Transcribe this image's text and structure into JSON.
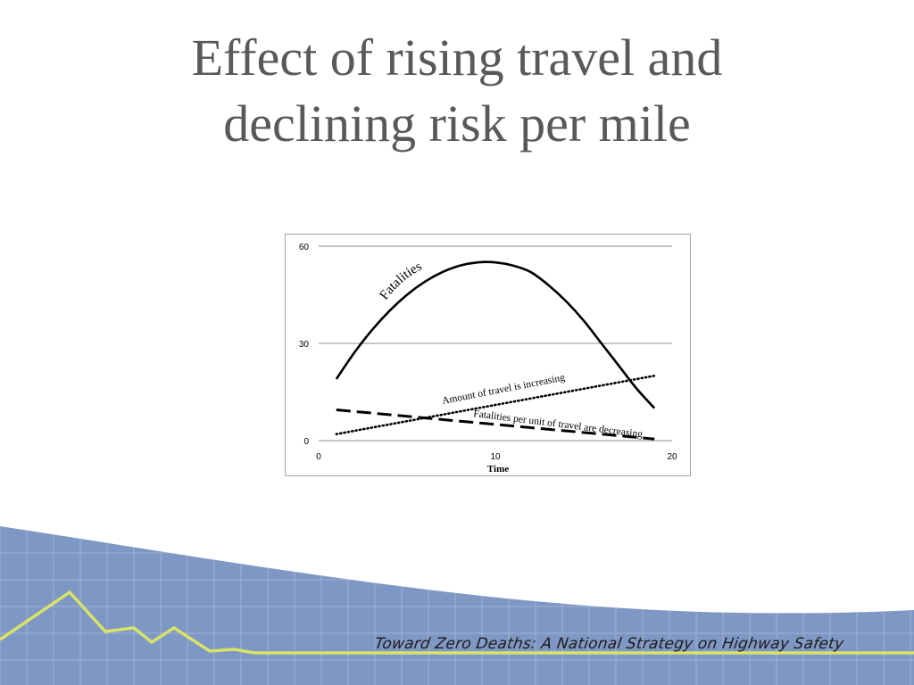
{
  "slide": {
    "title_line1": "Effect of rising travel and",
    "title_line2": "declining risk per mile",
    "footer_text": "Toward Zero Deaths: A National Strategy on Highway Safety"
  },
  "colors": {
    "title": "#595959",
    "footer_band": "#7f97c4",
    "footer_grid": "#9fb3d6",
    "footer_line": "#d8e36a"
  },
  "chart_data": {
    "type": "line",
    "xlabel": "Time",
    "ylabel": "",
    "xlim": [
      0,
      20
    ],
    "ylim": [
      0,
      60
    ],
    "xticks": [
      0,
      10,
      20
    ],
    "yticks": [
      0,
      30,
      60
    ],
    "grid": "horizontal",
    "series": [
      {
        "name": "Fatalities",
        "style": "solid",
        "x": [
          1,
          2,
          3,
          4,
          5,
          6,
          7,
          8,
          9,
          10,
          11,
          12,
          13,
          14,
          15,
          16,
          17,
          18,
          19
        ],
        "y": [
          19,
          27,
          34,
          40,
          45,
          49,
          52,
          54,
          55,
          55,
          54,
          52,
          48,
          43,
          37,
          30,
          23,
          16,
          10
        ]
      },
      {
        "name": "Amount of travel is increasing",
        "style": "dotted",
        "x": [
          1,
          19
        ],
        "y": [
          2,
          20
        ]
      },
      {
        "name": "Fatalities per unit of travel are decreasing",
        "style": "dashed",
        "x": [
          1,
          19
        ],
        "y": [
          9.5,
          0.5
        ]
      }
    ]
  }
}
